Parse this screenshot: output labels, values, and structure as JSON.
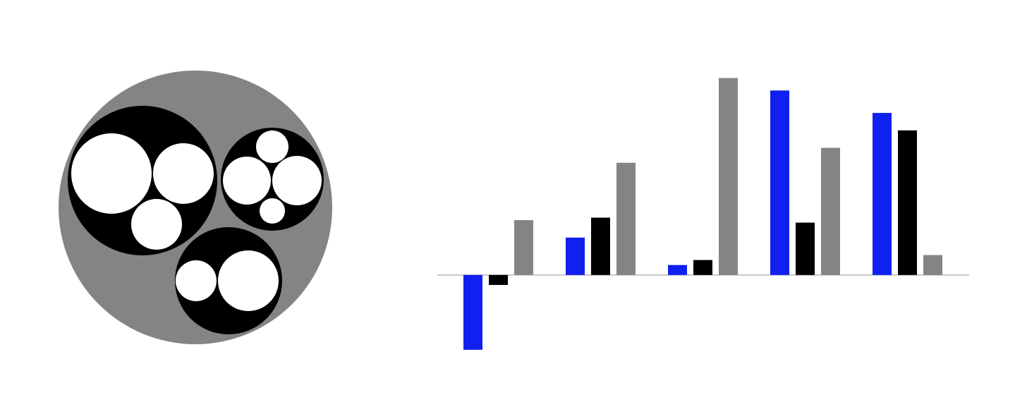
{
  "colors": {
    "background": "#ffffff",
    "pack_root": "#848487",
    "pack_group": "#000000",
    "pack_leaf": "#ffffff",
    "baseline": "#c8c8c8"
  },
  "circle_pack": {
    "root_name": "",
    "groups": [
      {
        "name": "",
        "leaves": [
          {
            "value": 4
          },
          {
            "value": 2.5
          },
          {
            "value": 1.7
          }
        ]
      },
      {
        "name": "",
        "leaves": [
          {
            "value": 1.6
          },
          {
            "value": 1.5
          },
          {
            "value": 0.7
          },
          {
            "value": 0.5
          }
        ]
      },
      {
        "name": "",
        "leaves": [
          {
            "value": 2.4
          },
          {
            "value": 1
          }
        ]
      }
    ]
  },
  "chart_data": {
    "type": "bar",
    "title": "",
    "xlabel": "",
    "ylabel": "",
    "categories": [
      "",
      "",
      "",
      "",
      ""
    ],
    "series": [
      {
        "color": "#1020f0",
        "values": [
          -3.0,
          1.5,
          0.4,
          7.4,
          6.5
        ]
      },
      {
        "color": "#000000",
        "values": [
          -0.4,
          2.3,
          0.6,
          2.1,
          5.8
        ]
      },
      {
        "color": "#848487",
        "values": [
          2.2,
          4.5,
          7.9,
          5.1,
          0.8
        ]
      }
    ],
    "ylim": [
      -3.4,
      8.2
    ],
    "grid": false,
    "legend": "none",
    "axis_line": "zero-baseline"
  }
}
